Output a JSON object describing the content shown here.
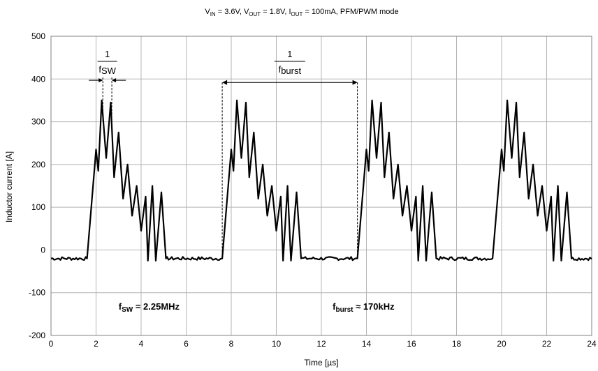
{
  "chart_data": {
    "type": "line",
    "title": {
      "parts": [
        {
          "t": "V"
        },
        {
          "t": "IN",
          "sub": true
        },
        {
          "t": " = 3.6V, V"
        },
        {
          "t": "OUT",
          "sub": true
        },
        {
          "t": " = 1.8V, I"
        },
        {
          "t": "OUT",
          "sub": true
        },
        {
          "t": " = 100mA, PFM/PWM mode"
        }
      ]
    },
    "xlabel": "Time  [µs]",
    "ylabel": "Inductor current  [A]",
    "xlim": [
      0,
      24
    ],
    "ylim": [
      -200,
      500
    ],
    "xticks": [
      0,
      2,
      4,
      6,
      8,
      10,
      12,
      14,
      16,
      18,
      20,
      22,
      24
    ],
    "yticks": [
      500,
      400,
      300,
      200,
      100,
      0,
      -100,
      -200
    ],
    "grid": true,
    "burst": {
      "starts": [
        1.6,
        7.6,
        13.6,
        19.6
      ],
      "rise_peak": [
        2.0,
        235
      ],
      "valley_peak_pairs": [
        [
          2.1,
          185,
          2.25,
          350
        ],
        [
          2.45,
          215,
          2.65,
          345
        ],
        [
          2.8,
          170,
          3.0,
          275
        ],
        [
          3.2,
          120,
          3.4,
          200
        ],
        [
          3.6,
          80,
          3.8,
          150
        ],
        [
          4.0,
          45,
          4.2,
          125
        ],
        [
          4.3,
          -25,
          4.5,
          150
        ],
        [
          4.65,
          -25,
          4.9,
          135
        ]
      ],
      "end_drop": [
        5.1,
        -20
      ],
      "baseline": -20,
      "baseline_noise": 4
    },
    "annotations": {
      "fsw_fraction": {
        "numerator": "1",
        "den_main": "f",
        "den_sub": "SW"
      },
      "fburst_fraction": {
        "numerator": "1",
        "den_main": "f",
        "den_sub": "burst"
      },
      "fsw_label": {
        "main": "f",
        "sub": "SW",
        "rest": " = 2.25MHz"
      },
      "fburst_label": {
        "main": "f",
        "sub": "burst",
        "rest": " ≈ 170kHz"
      },
      "fsw_marks": [
        2.3,
        2.7
      ],
      "fburst_marks": [
        7.6,
        13.6
      ],
      "fburst_arrow_y": 392,
      "fsw_arrow_y": 397
    }
  }
}
